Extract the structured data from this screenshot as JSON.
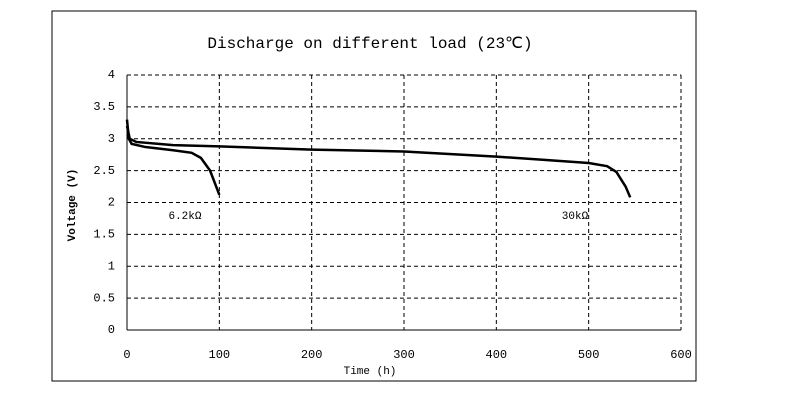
{
  "chart_data": {
    "type": "line",
    "title": "Discharge on different load (23℃)",
    "x_label": "Time (h)",
    "y_label": "Voltage (V)",
    "xlim": [
      0,
      600
    ],
    "xticks": [
      0,
      100,
      200,
      300,
      400,
      500,
      600
    ],
    "ylim": [
      0,
      4
    ],
    "yticks": [
      0,
      0.5,
      1,
      1.5,
      2,
      2.5,
      3,
      3.5,
      4
    ],
    "grid": true,
    "series": [
      {
        "name": "6.2kΩ",
        "color": "#000000",
        "x": [
          0,
          2,
          5,
          20,
          50,
          70,
          80,
          90,
          100
        ],
        "values": [
          3.3,
          3.0,
          2.92,
          2.87,
          2.82,
          2.78,
          2.7,
          2.5,
          2.12
        ]
      },
      {
        "name": "30kΩ",
        "color": "#000000",
        "x": [
          0,
          3,
          10,
          50,
          100,
          200,
          300,
          400,
          450,
          500,
          520,
          530,
          540,
          545
        ],
        "values": [
          3.2,
          3.0,
          2.95,
          2.9,
          2.88,
          2.83,
          2.8,
          2.72,
          2.67,
          2.62,
          2.57,
          2.48,
          2.25,
          2.08
        ]
      }
    ]
  }
}
